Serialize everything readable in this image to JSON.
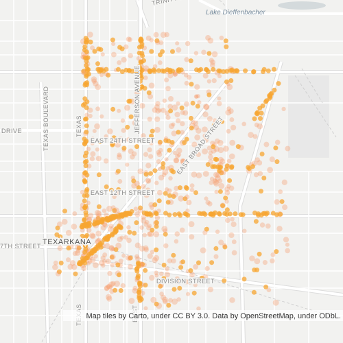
{
  "map": {
    "labels": [
      "TRINITY BO",
      "Lake Dieffenbacher",
      "TEXAS BOULEVARD",
      "DRIVE",
      "TEXAS",
      "JEFFERSON AVENUE",
      "EAST 24TH STREET",
      "EAST 12TH STREET",
      "EAST BROAD STREET",
      "TEXARKANA",
      "7TH STREET",
      "DIVISION STREET",
      "TEXAS",
      "EAST"
    ],
    "attribution": "Map tiles by Carto, under CC BY 3.0. Data by OpenStreetMap, under ODbL."
  }
}
